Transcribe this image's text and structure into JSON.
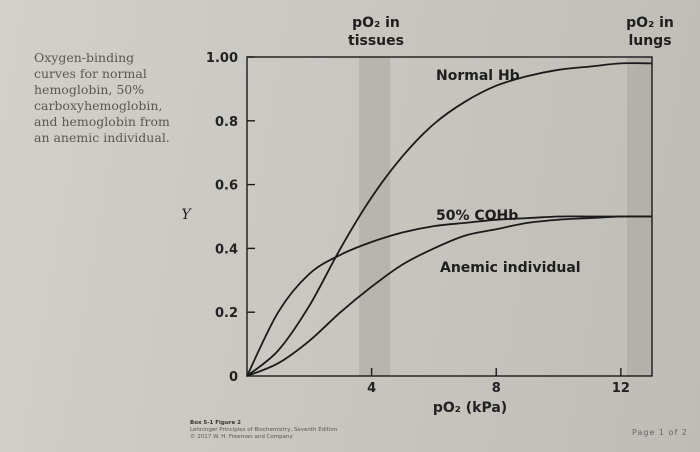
{
  "caption": {
    "lines": [
      "Oxygen-binding",
      "curves for normal",
      "hemoglobin, 50%",
      "carboxyhemoglobin,",
      "and hemoglobin from",
      "an anemic individual."
    ]
  },
  "footer": {
    "figure_label": "Box 5-1 Figure 2",
    "book": "Lehninger Principles of Biochemistry, Seventh Edition",
    "copyright": "© 2017 W. H. Freeman and Company"
  },
  "page_number": "Page 1 of 2",
  "colors": {
    "curve": "#1a1a1a",
    "band": "#a9a69f",
    "frame": "#1a1a1a"
  },
  "chart_data": {
    "type": "line",
    "title": "",
    "xlabel": "pO₂ (kPa)",
    "ylabel": "Y",
    "xlim": [
      0,
      13
    ],
    "ylim": [
      0,
      1.0
    ],
    "x_ticks": [
      {
        "value": 4,
        "label": "4"
      },
      {
        "value": 8,
        "label": "8"
      },
      {
        "value": 12,
        "label": "12"
      }
    ],
    "y_ticks": [
      {
        "value": 0,
        "label": "0"
      },
      {
        "value": 0.2,
        "label": "0.2"
      },
      {
        "value": 0.4,
        "label": "0.4"
      },
      {
        "value": 0.6,
        "label": "0.6"
      },
      {
        "value": 0.8,
        "label": "0.8"
      },
      {
        "value": 1.0,
        "label": "1.00"
      }
    ],
    "bands": [
      {
        "label": "pO₂ in tissues",
        "x_range": [
          3.6,
          4.6
        ],
        "label_lines": [
          "pO₂ in",
          "tissues"
        ]
      },
      {
        "label": "pO₂ in lungs",
        "x_range": [
          12.2,
          13.0
        ],
        "label_lines": [
          "pO₂ in",
          "lungs"
        ]
      }
    ],
    "series": [
      {
        "name": "Normal Hb",
        "x": [
          0,
          1,
          2,
          3,
          4,
          5,
          6,
          7,
          8,
          9,
          10,
          11,
          12,
          13
        ],
        "y": [
          0,
          0.08,
          0.22,
          0.4,
          0.56,
          0.69,
          0.79,
          0.86,
          0.91,
          0.94,
          0.96,
          0.97,
          0.98,
          0.98
        ]
      },
      {
        "name": "50% COHb",
        "x": [
          0,
          1,
          2,
          3,
          4,
          5,
          6,
          7,
          8,
          9,
          10,
          11,
          12,
          13
        ],
        "y": [
          0,
          0.2,
          0.32,
          0.38,
          0.42,
          0.45,
          0.47,
          0.48,
          0.49,
          0.495,
          0.5,
          0.5,
          0.5,
          0.5
        ]
      },
      {
        "name": "Anemic individual",
        "x": [
          0,
          1,
          2,
          3,
          4,
          5,
          6,
          7,
          8,
          9,
          10,
          11,
          12,
          13
        ],
        "y": [
          0,
          0.04,
          0.11,
          0.2,
          0.28,
          0.35,
          0.4,
          0.44,
          0.46,
          0.48,
          0.49,
          0.495,
          0.5,
          0.5
        ]
      }
    ],
    "annotations": [
      {
        "text": "Normal Hb",
        "series": "Normal Hb"
      },
      {
        "text": "50% COHb",
        "series": "50% COHb"
      },
      {
        "text": "Anemic individual",
        "series": "Anemic individual"
      }
    ],
    "grid": false,
    "legend": "none"
  }
}
